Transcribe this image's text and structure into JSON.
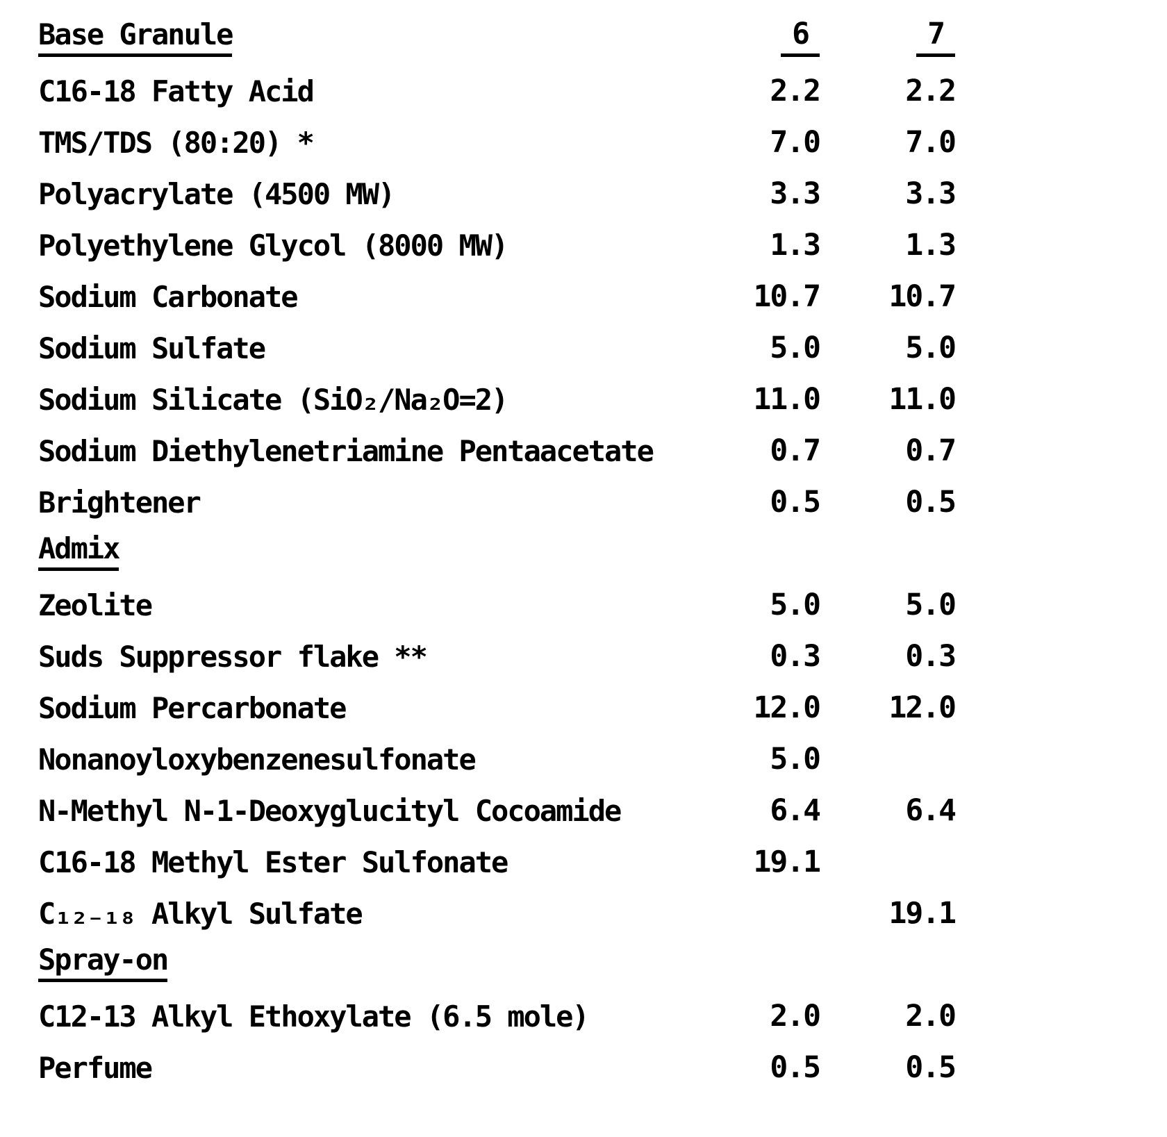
{
  "document": {
    "kind": "scanned typewritten formulation table",
    "text_color": "#000000",
    "background_color": "#ffffff"
  },
  "table": {
    "column_headers": [
      "6",
      "7"
    ],
    "rows": [
      {
        "t": "h",
        "label": "Base Granule",
        "v6": "6",
        "v7": "7",
        "underline_values": true
      },
      {
        "t": "r",
        "label": "C16-18 Fatty Acid",
        "v6": "2.2",
        "v7": "2.2"
      },
      {
        "t": "r",
        "label": "TMS/TDS (80:20) *",
        "v6": "7.0",
        "v7": "7.0"
      },
      {
        "t": "r",
        "label": "Polyacrylate (4500 MW)",
        "v6": "3.3",
        "v7": "3.3"
      },
      {
        "t": "r",
        "label": "Polyethylene Glycol (8000 MW)",
        "v6": "1.3",
        "v7": "1.3"
      },
      {
        "t": "r",
        "label": "Sodium Carbonate",
        "v6": "10.7",
        "v7": "10.7"
      },
      {
        "t": "r",
        "label": "Sodium Sulfate",
        "v6": "5.0",
        "v7": "5.0"
      },
      {
        "t": "r",
        "label": "Sodium Silicate (SiO₂/Na₂O=2)",
        "v6": "11.0",
        "v7": "11.0"
      },
      {
        "t": "r",
        "label": "Sodium Diethylenetriamine Pentaacetate",
        "v6": "0.7",
        "v7": "0.7"
      },
      {
        "t": "r",
        "label": "Brightener",
        "v6": "0.5",
        "v7": "0.5"
      },
      {
        "t": "h",
        "label": "Admix",
        "v6": "",
        "v7": ""
      },
      {
        "t": "r",
        "label": "Zeolite",
        "v6": "5.0",
        "v7": "5.0"
      },
      {
        "t": "r",
        "label": "Suds Suppressor flake **",
        "v6": "0.3",
        "v7": "0.3"
      },
      {
        "t": "r",
        "label": "Sodium Percarbonate",
        "v6": "12.0",
        "v7": "12.0"
      },
      {
        "t": "r",
        "label": "Nonanoyloxybenzenesulfonate",
        "v6": "5.0",
        "v7": ""
      },
      {
        "t": "r",
        "label": "N-Methyl N-1-Deoxyglucityl Cocoamide",
        "v6": "6.4",
        "v7": "6.4"
      },
      {
        "t": "r",
        "label": "C16-18 Methyl Ester Sulfonate",
        "v6": "19.1",
        "v7": ""
      },
      {
        "t": "r",
        "label": "C₁₂₋₁₈ Alkyl Sulfate",
        "v6": "",
        "v7": "19.1"
      },
      {
        "t": "h",
        "label": "Spray-on",
        "v6": "",
        "v7": ""
      },
      {
        "t": "r",
        "label": "C12-13 Alkyl Ethoxylate (6.5 mole)",
        "v6": "2.0",
        "v7": "2.0"
      },
      {
        "t": "r",
        "label": "Perfume",
        "v6": "0.5",
        "v7": "0.5"
      }
    ]
  }
}
